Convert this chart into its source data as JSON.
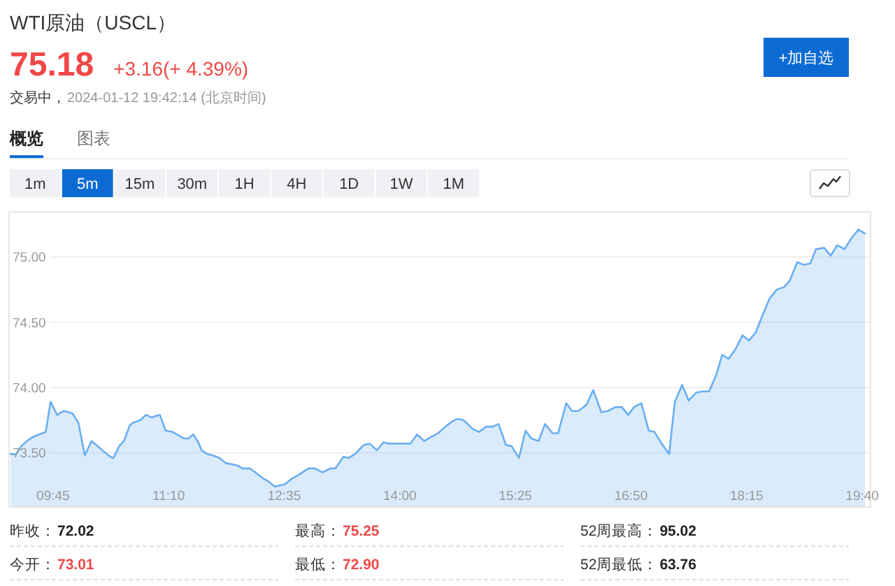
{
  "chart_data": {
    "type": "area",
    "title": "WTI原油（USCL）",
    "annotations": [
      "75.18",
      "+3.16(+ 4.39%)",
      "交易中，",
      "2024-01-12 19:42:14 (北京时间)",
      "+加自选",
      "概览",
      "图表",
      "1m",
      "5m",
      "15m",
      "30m",
      "1H",
      "4H",
      "1D",
      "1W",
      "1M",
      "昨收：",
      "72.02",
      "最高：",
      "75.25",
      "52周最高：",
      "95.02",
      "今开：",
      "73.01",
      "最低：",
      "72.90",
      "52周最低：",
      "63.76"
    ],
    "x": [
      9.23,
      9.3,
      9.36,
      9.45,
      9.5,
      9.62,
      9.66,
      9.72,
      9.8,
      9.88,
      9.95,
      9.99,
      10.06,
      10.14,
      10.22,
      10.3,
      10.37,
      10.45,
      10.49,
      10.56,
      10.62,
      10.69,
      10.73,
      10.82,
      10.89,
      10.96,
      11.0,
      11.06,
      11.13,
      11.21,
      11.27,
      11.35,
      11.41,
      11.47,
      11.53,
      11.57,
      11.64,
      11.71,
      11.79,
      11.87,
      11.96,
      12.02,
      12.07,
      12.16,
      12.23,
      12.31,
      12.39,
      12.47,
      12.53,
      12.6,
      12.67,
      12.76,
      12.88,
      12.96,
      13.05,
      13.15,
      13.21,
      13.31,
      13.37,
      13.45,
      13.56,
      13.63,
      13.72,
      13.8,
      13.87,
      13.96,
      14.04,
      14.13,
      14.21,
      14.3,
      14.38,
      14.47,
      14.56,
      14.64,
      14.71,
      14.78,
      14.9,
      14.97,
      15.06,
      15.14,
      15.21,
      15.3,
      15.37,
      15.46,
      15.54,
      15.61,
      15.7,
      15.78,
      15.87,
      15.94,
      16.04,
      16.11,
      16.19,
      16.29,
      16.37,
      16.47,
      16.55,
      16.64,
      16.72,
      16.8,
      16.87,
      16.96,
      17.05,
      17.12,
      17.21,
      17.3,
      17.37,
      17.46,
      17.54,
      17.63,
      17.71,
      17.79,
      17.88,
      17.95,
      18.03,
      18.11,
      18.2,
      18.28,
      18.36,
      18.45,
      18.53,
      18.62,
      18.71,
      18.78,
      18.87,
      18.95,
      19.03,
      19.1,
      19.2,
      19.28,
      19.36,
      19.45,
      19.53,
      19.62,
      19.7
    ],
    "series": [
      {
        "color": "#6aaef0",
        "values": [
          73.49,
          73.49,
          73.55,
          73.6,
          73.62,
          73.65,
          73.66,
          73.89,
          73.79,
          73.82,
          73.81,
          73.8,
          73.73,
          73.48,
          73.59,
          73.55,
          73.51,
          73.47,
          73.46,
          73.55,
          73.59,
          73.71,
          73.73,
          73.75,
          73.79,
          73.77,
          73.78,
          73.79,
          73.67,
          73.66,
          73.64,
          73.61,
          73.61,
          73.64,
          73.58,
          73.52,
          73.49,
          73.48,
          73.46,
          73.42,
          73.41,
          73.4,
          73.38,
          73.38,
          73.35,
          73.31,
          73.28,
          73.24,
          73.25,
          73.26,
          73.3,
          73.33,
          73.38,
          73.38,
          73.35,
          73.38,
          73.38,
          73.47,
          73.46,
          73.49,
          73.56,
          73.57,
          73.52,
          73.58,
          73.57,
          73.57,
          73.57,
          73.57,
          73.64,
          73.59,
          73.62,
          73.65,
          73.7,
          73.74,
          73.76,
          73.75,
          73.68,
          73.66,
          73.7,
          73.7,
          73.72,
          73.56,
          73.55,
          73.46,
          73.67,
          73.61,
          73.59,
          73.72,
          73.65,
          73.65,
          73.88,
          73.82,
          73.82,
          73.87,
          73.98,
          73.81,
          73.82,
          73.85,
          73.85,
          73.79,
          73.85,
          73.88,
          73.67,
          73.66,
          73.57,
          73.49,
          73.89,
          74.02,
          73.9,
          73.96,
          73.97,
          73.97,
          74.1,
          74.25,
          74.22,
          74.29,
          74.4,
          74.36,
          74.42,
          74.56,
          74.68,
          74.75,
          74.77,
          74.82,
          74.96,
          74.94,
          74.95,
          75.06,
          75.07,
          75.01,
          75.09,
          75.06,
          75.14,
          75.21,
          75.18
        ]
      }
    ],
    "xlim": [
      9.22,
      19.76
    ],
    "ylim": [
      73.09,
      75.34
    ],
    "xticks": [
      {
        "value": 9.75,
        "label": "09:45"
      },
      {
        "value": 11.1667,
        "label": "11:10"
      },
      {
        "value": 12.5833,
        "label": "12:35"
      },
      {
        "value": 14,
        "label": "14:00"
      },
      {
        "value": 15.4167,
        "label": "15:25"
      },
      {
        "value": 16.8333,
        "label": "16:50"
      },
      {
        "value": 18.25,
        "label": "18:15"
      },
      {
        "value": 19.6667,
        "label": "19:40"
      }
    ],
    "yticks": [
      {
        "value": 73.5,
        "label": "73.50"
      },
      {
        "value": 74,
        "label": "74.00"
      },
      {
        "value": 74.5,
        "label": "74.50"
      },
      {
        "value": 75,
        "label": "75.00"
      }
    ],
    "grid": "y"
  }
}
